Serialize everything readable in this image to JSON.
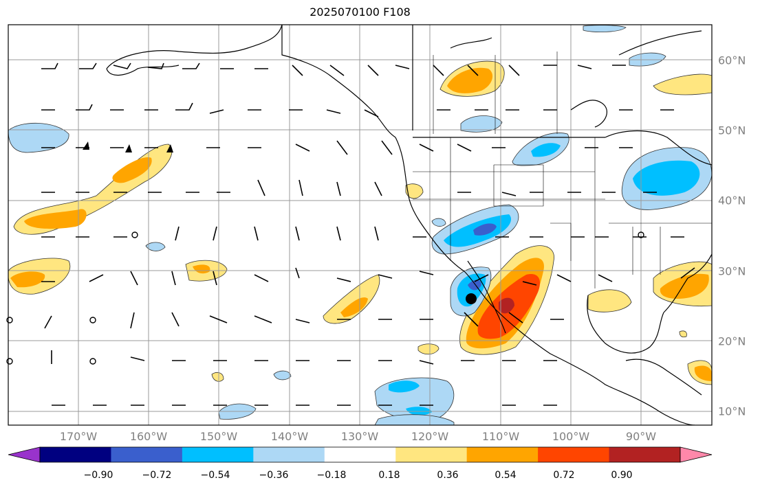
{
  "title": "2025070100 F108",
  "lon_labels": [
    "170°W",
    "160°W",
    "150°W",
    "140°W",
    "130°W",
    "120°W",
    "110°W",
    "100°W",
    "90°W"
  ],
  "lat_labels": [
    "60°N",
    "50°N",
    "40°N",
    "30°N",
    "20°N",
    "10°N"
  ],
  "colorbar": {
    "labels": [
      "−0.90",
      "−0.72",
      "−0.54",
      "−0.36",
      "−0.18",
      "0.18",
      "0.36",
      "0.54",
      "0.72",
      "0.90"
    ],
    "values": [
      -0.9,
      -0.72,
      -0.54,
      -0.36,
      -0.18,
      0.18,
      0.36,
      0.54,
      0.72,
      0.9
    ],
    "colors": [
      "#9933cc",
      "#000080",
      "#3a5fcd",
      "#00bfff",
      "#add8f5",
      "#ffffff",
      "#ffe680",
      "#ffa500",
      "#ff4500",
      "#b22222",
      "#ff88aa"
    ]
  },
  "map_extent": {
    "lon_min": -180,
    "lon_max": -80,
    "lat_min": 8,
    "lat_max": 65
  }
}
